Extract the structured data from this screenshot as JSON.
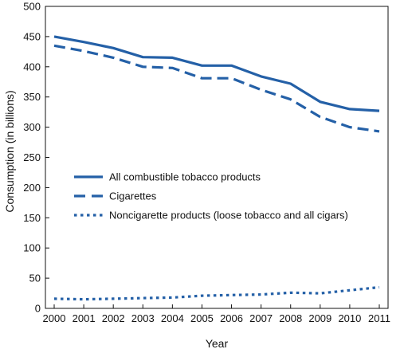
{
  "chart_data": {
    "type": "line",
    "xlabel": "Year",
    "ylabel": "Consumption (in billions)",
    "x": [
      2000,
      2001,
      2002,
      2003,
      2004,
      2005,
      2006,
      2007,
      2008,
      2009,
      2010,
      2011
    ],
    "x_tick_labels": [
      "2000",
      "2001",
      "2002",
      "2003",
      "2004",
      "2005",
      "2006",
      "2007",
      "2008",
      "2009",
      "2010",
      "2011"
    ],
    "ylim": [
      0,
      500
    ],
    "y_ticks": [
      0,
      50,
      100,
      150,
      200,
      250,
      300,
      350,
      400,
      450,
      500
    ],
    "y_tick_labels": [
      "0",
      "50",
      "100",
      "150",
      "200",
      "250",
      "300",
      "350",
      "400",
      "450",
      "500"
    ],
    "grid": false,
    "legend_position": "center-left",
    "series": [
      {
        "name": "All combustible tobacco products",
        "style": "solid",
        "color": "#2460a7",
        "values": [
          450,
          441,
          431,
          416,
          415,
          402,
          402,
          384,
          372,
          342,
          330,
          327
        ]
      },
      {
        "name": "Cigarettes",
        "style": "dashed",
        "color": "#2460a7",
        "values": [
          435,
          426,
          415,
          400,
          398,
          381,
          381,
          362,
          346,
          317,
          300,
          293
        ]
      },
      {
        "name": "Noncigarette products (loose tobacco and all cigars)",
        "style": "dotted",
        "color": "#2460a7",
        "values": [
          16,
          15,
          16,
          17,
          18,
          21,
          22,
          23,
          26,
          25,
          30,
          35
        ]
      }
    ]
  }
}
